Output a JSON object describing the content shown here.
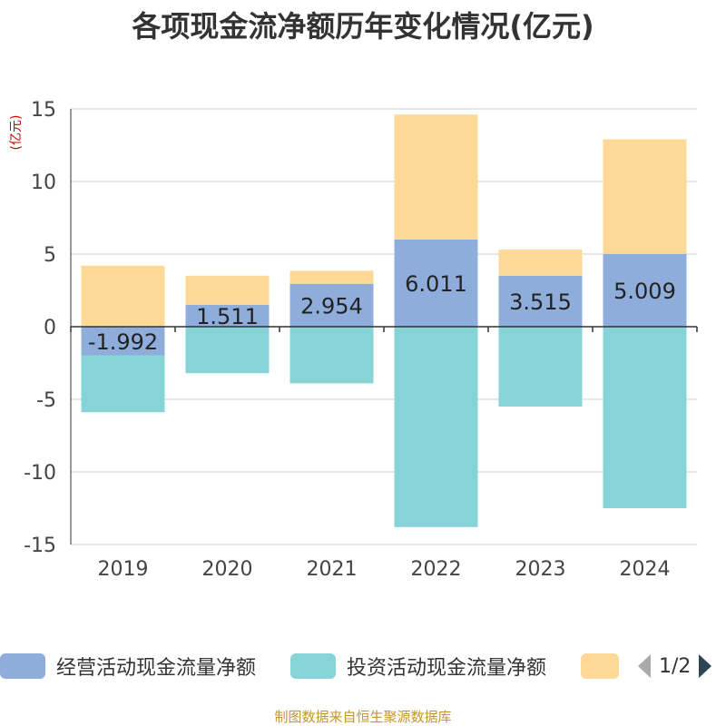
{
  "chart_data": {
    "type": "bar",
    "stacked": true,
    "title": "各项现金流净额历年变化情况(亿元)",
    "ylabel": "(亿元)",
    "xlabel": "",
    "categories": [
      "2019",
      "2020",
      "2021",
      "2022",
      "2023",
      "2024"
    ],
    "ylim": [
      -15,
      15
    ],
    "yticks": [
      15,
      10,
      5,
      0,
      -5,
      -10,
      -15
    ],
    "grid": true,
    "series": [
      {
        "name": "经营活动现金流量净额",
        "color": "#8eaddb",
        "values": [
          -1.992,
          1.511,
          2.954,
          6.011,
          3.515,
          5.009
        ],
        "labels": [
          "-1.992",
          "1.511",
          "2.954",
          "6.011",
          "3.515",
          "5.009"
        ]
      },
      {
        "name": "投资活动现金流量净额",
        "color": "#86d4d8",
        "values": [
          -3.9,
          -3.2,
          -3.9,
          -13.8,
          -5.5,
          -12.5
        ]
      },
      {
        "name": "",
        "color": "#fed897",
        "values": [
          4.2,
          2.0,
          0.9,
          8.6,
          1.8,
          7.9
        ]
      }
    ]
  },
  "legend": {
    "items": [
      {
        "label": "经营活动现金流量净额",
        "color": "#8eaddb"
      },
      {
        "label": "投资活动现金流量净额",
        "color": "#86d4d8"
      },
      {
        "label": "",
        "color": "#fed897"
      }
    ],
    "page": "1/2"
  },
  "source": "制图数据来自恒生聚源数据库"
}
